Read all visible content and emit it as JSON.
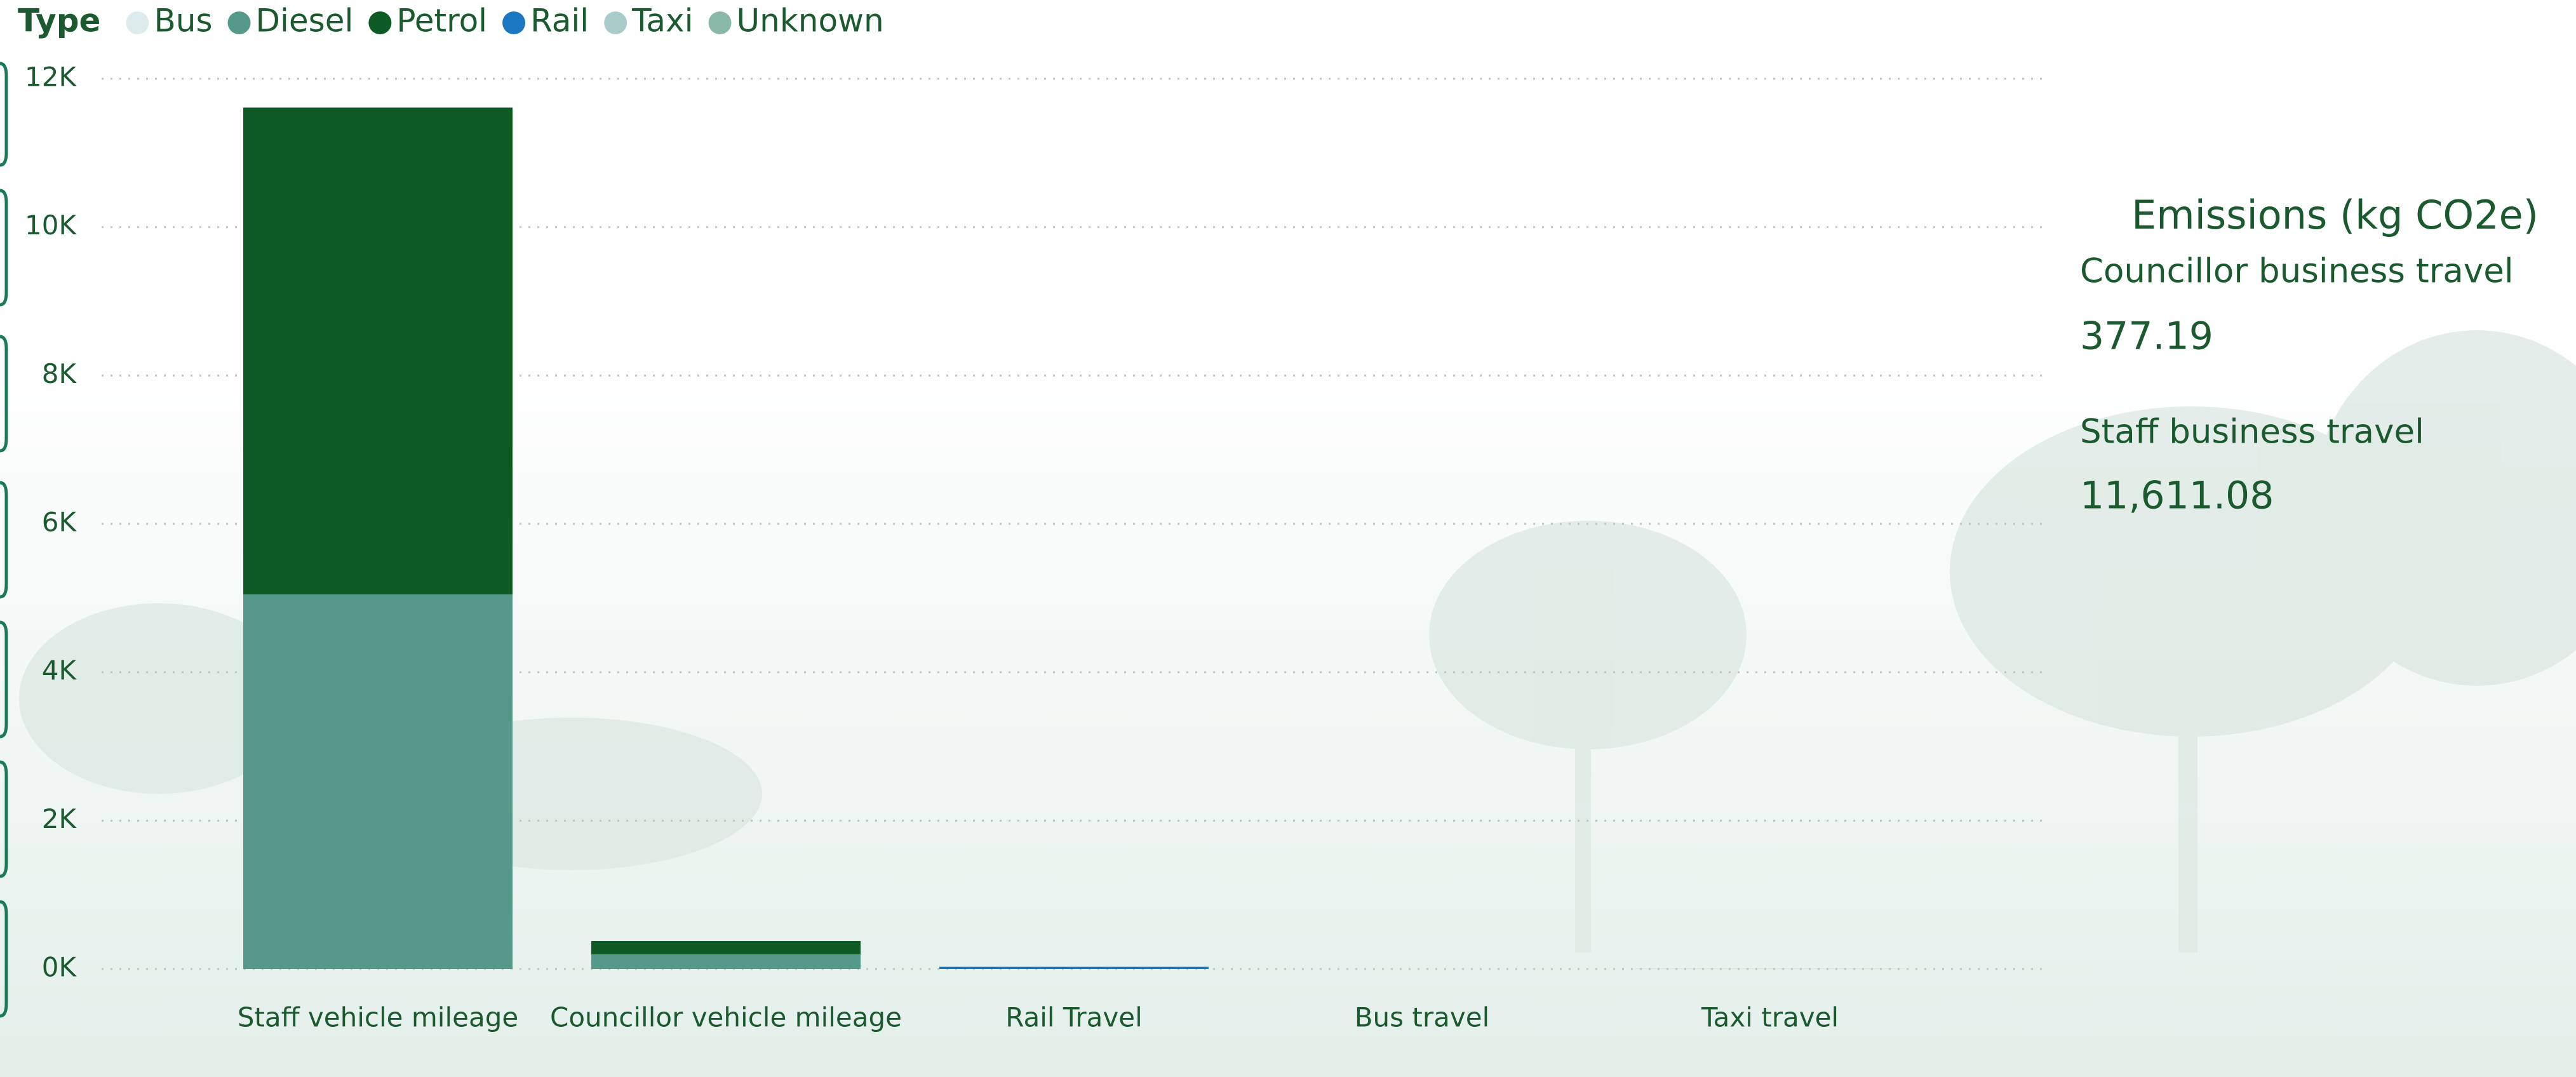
{
  "chart_data": {
    "type": "stacked-bar",
    "legend_title": "Type",
    "categories": [
      "Staff vehicle mileage",
      "Councillor vehicle mileage",
      "Rail Travel",
      "Bus travel",
      "Taxi travel"
    ],
    "series": [
      {
        "name": "Bus",
        "color": "#dcecec",
        "values": [
          0,
          0,
          0,
          2,
          0
        ]
      },
      {
        "name": "Diesel",
        "color": "#55998a",
        "values": [
          5050,
          200,
          0,
          0,
          0
        ]
      },
      {
        "name": "Petrol",
        "color": "#0e5a24",
        "values": [
          6561,
          177,
          0,
          0,
          0
        ]
      },
      {
        "name": "Rail",
        "color": "#1a78c2",
        "values": [
          0,
          0,
          30,
          0,
          0
        ]
      },
      {
        "name": "Taxi",
        "color": "#a9cccb",
        "values": [
          0,
          0,
          0,
          0,
          3
        ]
      },
      {
        "name": "Unknown",
        "color": "#8ab8a8",
        "values": [
          0,
          0,
          0,
          0,
          0
        ]
      }
    ],
    "ylim": [
      0,
      12000
    ],
    "yticks": [
      {
        "value": 0,
        "label": "0K"
      },
      {
        "value": 2000,
        "label": "2K"
      },
      {
        "value": 4000,
        "label": "4K"
      },
      {
        "value": 6000,
        "label": "6K"
      },
      {
        "value": 8000,
        "label": "8K"
      },
      {
        "value": 10000,
        "label": "10K"
      },
      {
        "value": 12000,
        "label": "12K"
      }
    ],
    "grid": true
  },
  "card": {
    "title": "Emissions (kg CO2e)",
    "items": [
      {
        "label": "Councillor business travel",
        "value": "377.19"
      },
      {
        "label": "Staff business travel",
        "value": "11,611.08"
      }
    ]
  }
}
